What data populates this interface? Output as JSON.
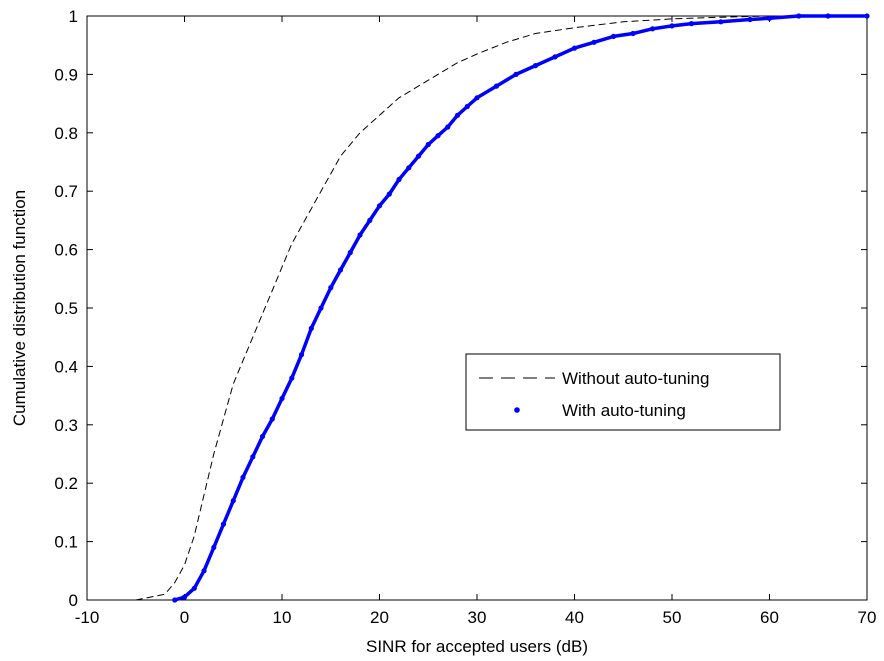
{
  "chart_data": {
    "type": "line",
    "xlabel": "SINR for accepted users (dB)",
    "ylabel": "Cumulative distribution function",
    "xlim": [
      -10,
      70
    ],
    "ylim": [
      0,
      1
    ],
    "xticks": [
      "-10",
      "0",
      "10",
      "20",
      "30",
      "40",
      "50",
      "60",
      "70"
    ],
    "yticks": [
      "0",
      "0.1",
      "0.2",
      "0.3",
      "0.4",
      "0.5",
      "0.6",
      "0.7",
      "0.8",
      "0.9",
      "1"
    ],
    "grid": false,
    "legend_position": "center-right",
    "series": [
      {
        "name": "Without auto-tuning",
        "style": "dashed",
        "color": "#000000",
        "x": [
          -5,
          -2,
          -1,
          0,
          1,
          2,
          3,
          4,
          5,
          6,
          7,
          8,
          9,
          10,
          11,
          12,
          13,
          14,
          15,
          16,
          18,
          20,
          22,
          25,
          28,
          30,
          33,
          36,
          40,
          45,
          50,
          55,
          60,
          70
        ],
        "y": [
          0,
          0.01,
          0.03,
          0.06,
          0.11,
          0.18,
          0.25,
          0.31,
          0.37,
          0.41,
          0.45,
          0.49,
          0.53,
          0.57,
          0.61,
          0.64,
          0.67,
          0.7,
          0.73,
          0.76,
          0.8,
          0.83,
          0.86,
          0.89,
          0.92,
          0.935,
          0.955,
          0.97,
          0.98,
          0.99,
          0.995,
          0.998,
          1.0,
          1.0
        ]
      },
      {
        "name": "With auto-tuning",
        "style": "dots",
        "color": "#0000ff",
        "x": [
          -1,
          0,
          1,
          2,
          3,
          4,
          5,
          6,
          7,
          8,
          9,
          10,
          11,
          12,
          13,
          14,
          15,
          16,
          17,
          18,
          19,
          20,
          21,
          22,
          23,
          24,
          25,
          26,
          27,
          28,
          29,
          30,
          32,
          34,
          36,
          38,
          40,
          42,
          44,
          46,
          48,
          50,
          52,
          55,
          58,
          60,
          63,
          66,
          70
        ],
        "y": [
          0,
          0.005,
          0.02,
          0.05,
          0.09,
          0.13,
          0.17,
          0.21,
          0.245,
          0.28,
          0.31,
          0.345,
          0.38,
          0.42,
          0.465,
          0.5,
          0.535,
          0.565,
          0.595,
          0.625,
          0.65,
          0.675,
          0.695,
          0.72,
          0.74,
          0.76,
          0.78,
          0.795,
          0.81,
          0.83,
          0.845,
          0.86,
          0.88,
          0.9,
          0.915,
          0.93,
          0.945,
          0.955,
          0.965,
          0.97,
          0.978,
          0.983,
          0.987,
          0.99,
          0.994,
          0.996,
          1.0,
          1.0,
          1.0
        ]
      }
    ]
  }
}
